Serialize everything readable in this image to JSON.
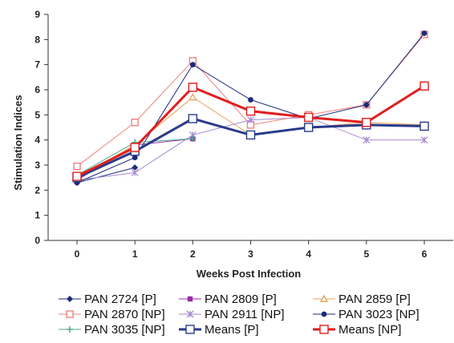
{
  "chart_data": {
    "type": "line",
    "title": "",
    "xlabel": "Weeks Post Infection",
    "ylabel": "Stimulation Indices",
    "x": [
      0,
      1,
      2,
      3,
      4,
      5,
      6
    ],
    "ylim": [
      0,
      9
    ],
    "yticks": [
      0,
      1,
      2,
      3,
      4,
      5,
      6,
      7,
      8,
      9
    ],
    "grid": false,
    "legend_position": "bottom",
    "series": [
      {
        "name": "PAN 2724 [P]",
        "color": "#1a2a7a",
        "marker": "diamond",
        "values": [
          2.3,
          2.9,
          null,
          null,
          null,
          null,
          null
        ]
      },
      {
        "name": "PAN 2809 [P]",
        "color": "#9a2aa8",
        "marker": "square",
        "values": [
          2.4,
          3.8,
          4.05,
          null,
          null,
          null,
          null
        ]
      },
      {
        "name": "PAN 2859 [P]",
        "color": "#e8a05a",
        "marker": "triangle",
        "values": [
          2.5,
          3.8,
          5.7,
          4.2,
          4.5,
          4.7,
          4.6
        ]
      },
      {
        "name": "PAN 2870 [NP]",
        "color": "#f08080",
        "marker": "square-open",
        "values": [
          2.95,
          4.7,
          7.15,
          4.6,
          5.0,
          5.4,
          8.2
        ]
      },
      {
        "name": "PAN 2911 [NP]",
        "color": "#a78bd0",
        "marker": "star",
        "values": [
          2.4,
          2.7,
          4.2,
          4.8,
          4.9,
          4.0,
          4.0
        ]
      },
      {
        "name": "PAN 3023 [NP]",
        "color": "#1a2a7a",
        "marker": "circle",
        "values": [
          2.3,
          3.3,
          7.0,
          5.6,
          4.85,
          5.4,
          8.25
        ]
      },
      {
        "name": "PAN 3035 [NP]",
        "color": "#4fa98a",
        "marker": "plus",
        "values": [
          2.6,
          3.9,
          4.05,
          null,
          null,
          null,
          null
        ]
      },
      {
        "name": "Means [P]",
        "color": "#2a3a8a",
        "marker": "square-open",
        "values": [
          2.5,
          3.55,
          4.85,
          4.2,
          4.5,
          4.6,
          4.55
        ]
      },
      {
        "name": "Means [NP]",
        "color": "#e01e1e",
        "marker": "square-open",
        "values": [
          2.55,
          3.7,
          6.1,
          5.15,
          4.9,
          4.7,
          6.15
        ]
      }
    ]
  }
}
